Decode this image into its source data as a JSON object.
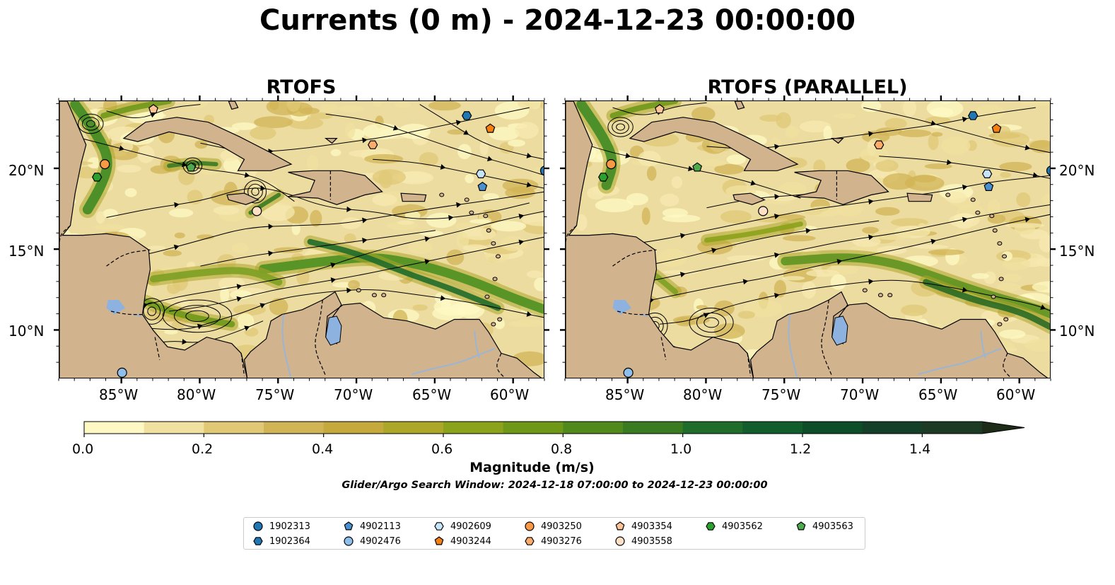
{
  "title": "Currents (0 m) - 2024-12-23 00:00:00",
  "panels": [
    {
      "title": "RTOFS"
    },
    {
      "title": "RTOFS (PARALLEL)"
    }
  ],
  "axes": {
    "x_ticks": [
      "85°W",
      "80°W",
      "75°W",
      "70°W",
      "65°W",
      "60°W"
    ],
    "y_ticks": [
      "20°N",
      "15°N",
      "10°N"
    ],
    "lon_range": [
      -89,
      -58
    ],
    "lat_range": [
      7,
      24.2
    ]
  },
  "colorbar": {
    "label": "Magnitude (m/s)",
    "ticks": [
      "0.0",
      "0.2",
      "0.4",
      "0.6",
      "0.8",
      "1.0",
      "1.2",
      "1.4"
    ],
    "range": [
      0,
      1.5
    ],
    "extend": "max",
    "colors": [
      "#fef9c4",
      "#f0e1a0",
      "#e0c877",
      "#d1b455",
      "#c5a93c",
      "#aca629",
      "#8ba21b",
      "#6f9818",
      "#52891c",
      "#3a7b22",
      "#1f6c2b",
      "#115d2c",
      "#0d4d27",
      "#14402a",
      "#1d3a24",
      "#1c2c19"
    ]
  },
  "search_window": "Glider/Argo Search Window: 2024-12-18 07:00:00 to 2024-12-23 00:00:00",
  "colors": {
    "land": "#d1b38d",
    "lake": "#8eb2df",
    "river": "#9bb5d4",
    "water_base": "#ecdca0"
  },
  "floats": [
    {
      "id": "1902313",
      "marker": "circle",
      "color": "#1f77b4",
      "lon": -58,
      "lat": 19.9
    },
    {
      "id": "1902364",
      "marker": "hexagon",
      "color": "#1f77b4",
      "lon": -63,
      "lat": 23.3
    },
    {
      "id": "4902113",
      "marker": "pentagon",
      "color": "#4a90d0",
      "lon": -62,
      "lat": 18.9
    },
    {
      "id": "4902476",
      "marker": "circle",
      "color": "#8ebfea",
      "lon": -85,
      "lat": 7.4
    },
    {
      "id": "4902609",
      "marker": "hexagon",
      "color": "#c6e4fa",
      "lon": -62.1,
      "lat": 19.7
    },
    {
      "id": "4903244",
      "marker": "pentagon",
      "color": "#f47f12",
      "lon": -61.5,
      "lat": 22.5
    },
    {
      "id": "4903250",
      "marker": "circle",
      "color": "#f89a45",
      "lon": -86.1,
      "lat": 20.3
    },
    {
      "id": "4903276",
      "marker": "hexagon",
      "color": "#fbac6a",
      "lon": -69,
      "lat": 21.5
    },
    {
      "id": "4903354",
      "marker": "pentagon",
      "color": "#fcc395",
      "lon": -83,
      "lat": 23.7
    },
    {
      "id": "4903558",
      "marker": "circle",
      "color": "#fde0c5",
      "lon": -76.4,
      "lat": 17.4
    },
    {
      "id": "4903562",
      "marker": "hexagon",
      "color": "#2ca02c",
      "lon": -86.6,
      "lat": 19.5
    },
    {
      "id": "4903563",
      "marker": "pentagon",
      "color": "#4daa4d",
      "lon": -80.6,
      "lat": 20.1
    }
  ]
}
